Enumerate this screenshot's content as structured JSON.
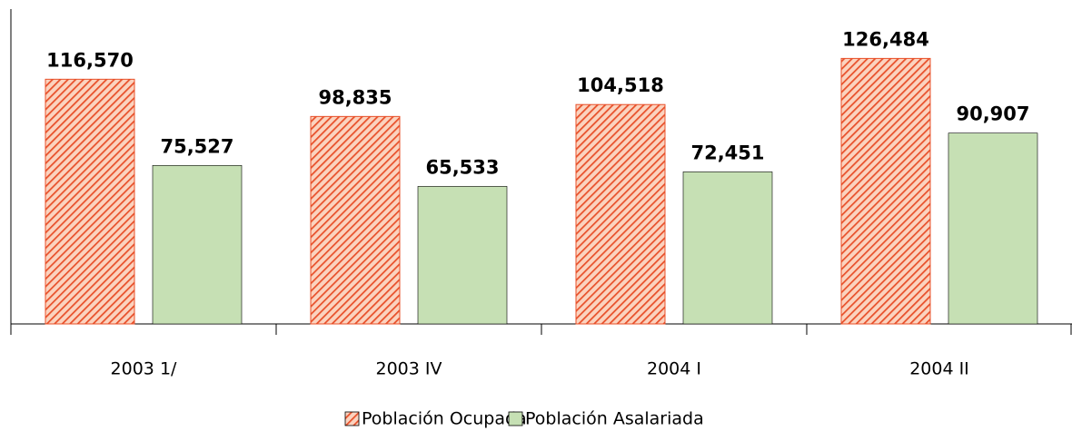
{
  "chart_data": {
    "type": "bar",
    "categories": [
      "2003 1/",
      "2003 IV",
      "2004 I",
      "2004 II"
    ],
    "series": [
      {
        "name": "Población Ocupada",
        "color": "#e8502a",
        "values": [
          116570,
          98835,
          104518,
          126484
        ],
        "value_labels": [
          "116,570",
          "98,835",
          "104,518",
          "126,484"
        ]
      },
      {
        "name": "Población Asalariada",
        "color": "#c6e0b4",
        "values": [
          75527,
          65533,
          72451,
          90907
        ],
        "value_labels": [
          "75,527",
          "65,533",
          "72,451",
          "90,907"
        ]
      }
    ],
    "ylim": [
      0,
      150000
    ]
  }
}
